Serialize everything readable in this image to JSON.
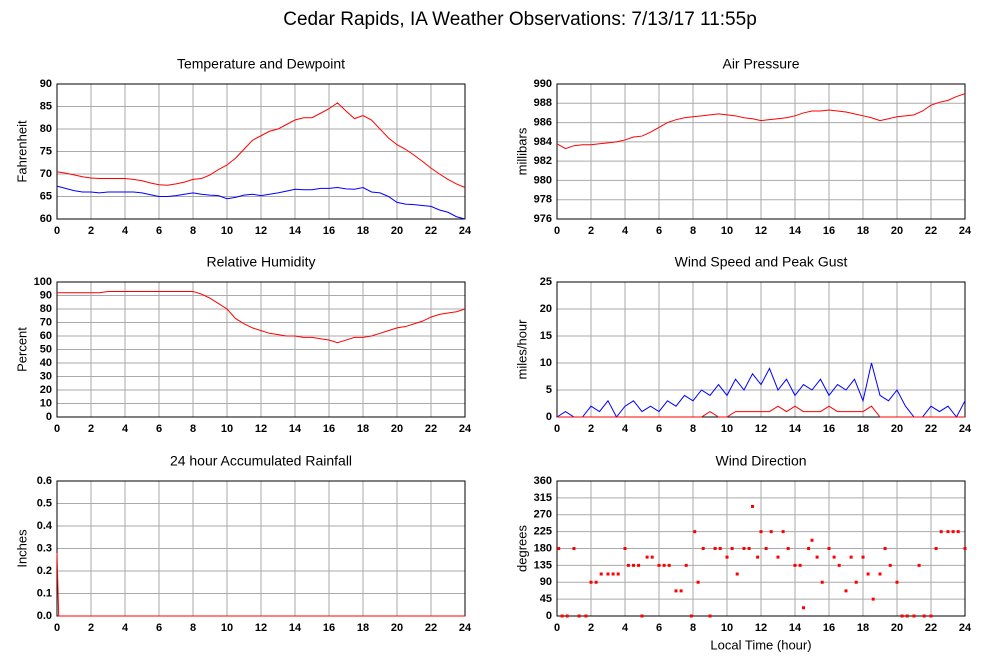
{
  "title": "Cedar Rapids, IA Weather Observations: 7/13/17 11:55p",
  "chart_data": [
    {
      "type": "line",
      "title": "Temperature and Dewpoint",
      "ylabel": "Fahrenheit",
      "x": [
        0,
        0.5,
        1,
        1.5,
        2,
        2.5,
        3,
        3.5,
        4,
        4.5,
        5,
        5.5,
        6,
        6.5,
        7,
        7.5,
        8,
        8.5,
        9,
        9.5,
        10,
        10.5,
        11,
        11.5,
        12,
        12.5,
        13,
        13.5,
        14,
        14.5,
        15,
        15.5,
        16,
        16.5,
        17,
        17.5,
        18,
        18.5,
        19,
        19.5,
        20,
        20.5,
        21,
        21.5,
        22,
        22.5,
        23,
        23.5,
        24
      ],
      "series": [
        {
          "color": "#ff0000",
          "values": [
            70.5,
            70.2,
            69.8,
            69.4,
            69.1,
            69,
            69,
            69,
            69,
            68.8,
            68.5,
            68,
            67.6,
            67.5,
            67.8,
            68.2,
            68.8,
            69,
            69.8,
            71,
            72,
            73.5,
            75.5,
            77.5,
            78.5,
            79.5,
            80,
            81,
            82,
            82.5,
            82.5,
            83.5,
            84.5,
            85.8,
            84,
            82.3,
            83,
            82,
            80,
            78,
            76.5,
            75.5,
            74.2,
            72.8,
            71.3,
            70,
            68.8,
            67.8,
            67
          ]
        },
        {
          "color": "#0000ff",
          "values": [
            67.3,
            66.8,
            66.3,
            66,
            66,
            65.8,
            66,
            66,
            66,
            66,
            65.8,
            65.4,
            65,
            65,
            65.2,
            65.5,
            65.8,
            65.5,
            65.3,
            65.2,
            64.5,
            64.8,
            65.3,
            65.5,
            65.2,
            65.5,
            65.8,
            66.2,
            66.6,
            66.5,
            66.5,
            66.8,
            66.8,
            67,
            66.7,
            66.6,
            67,
            66,
            65.8,
            65,
            63.7,
            63.3,
            63.2,
            63,
            62.8,
            62,
            61.5,
            60.5,
            60
          ]
        }
      ],
      "xlim": [
        0,
        24
      ],
      "xticks": [
        0,
        2,
        4,
        6,
        8,
        10,
        12,
        14,
        16,
        18,
        20,
        22,
        24
      ],
      "ylim": [
        60,
        90
      ],
      "yticks": [
        60,
        65,
        70,
        75,
        80,
        85,
        90
      ],
      "grid": true
    },
    {
      "type": "line",
      "title": "Air Pressure",
      "ylabel": "millibars",
      "x": [
        0,
        0.5,
        1,
        1.5,
        2,
        2.5,
        3,
        3.5,
        4,
        4.5,
        5,
        5.5,
        6,
        6.5,
        7,
        7.5,
        8,
        8.5,
        9,
        9.5,
        10,
        10.5,
        11,
        11.5,
        12,
        12.5,
        13,
        13.5,
        14,
        14.5,
        15,
        15.5,
        16,
        16.5,
        17,
        17.5,
        18,
        18.5,
        19,
        19.5,
        20,
        20.5,
        21,
        21.5,
        22,
        22.5,
        23,
        23.5,
        24
      ],
      "series": [
        {
          "color": "#ff0000",
          "values": [
            983.8,
            983.3,
            983.6,
            983.7,
            983.7,
            983.8,
            983.9,
            984,
            984.2,
            984.5,
            984.6,
            985,
            985.5,
            986,
            986.3,
            986.5,
            986.6,
            986.7,
            986.8,
            986.9,
            986.8,
            986.7,
            986.5,
            986.4,
            986.2,
            986.3,
            986.4,
            986.5,
            986.7,
            987,
            987.2,
            987.2,
            987.3,
            987.2,
            987.1,
            986.9,
            986.7,
            986.5,
            986.2,
            986.4,
            986.6,
            986.7,
            986.8,
            987.2,
            987.8,
            988.1,
            988.3,
            988.7,
            989
          ]
        }
      ],
      "xlim": [
        0,
        24
      ],
      "xticks": [
        0,
        2,
        4,
        6,
        8,
        10,
        12,
        14,
        16,
        18,
        20,
        22,
        24
      ],
      "ylim": [
        976,
        990
      ],
      "yticks": [
        976,
        978,
        980,
        982,
        984,
        986,
        988,
        990
      ],
      "grid": true
    },
    {
      "type": "line",
      "title": "Relative Humidity",
      "ylabel": "Percent",
      "x": [
        0,
        0.5,
        1,
        1.5,
        2,
        2.5,
        3,
        3.5,
        4,
        4.5,
        5,
        5.5,
        6,
        6.5,
        7,
        7.5,
        8,
        8.5,
        9,
        9.5,
        10,
        10.5,
        11,
        11.5,
        12,
        12.5,
        13,
        13.5,
        14,
        14.5,
        15,
        15.5,
        16,
        16.5,
        17,
        17.5,
        18,
        18.5,
        19,
        19.5,
        20,
        20.5,
        21,
        21.5,
        22,
        22.5,
        23,
        23.5,
        24
      ],
      "series": [
        {
          "color": "#ff0000",
          "values": [
            92,
            92,
            92,
            92,
            92,
            92,
            93,
            93,
            93,
            93,
            93,
            93,
            93,
            93,
            93,
            93,
            93,
            91,
            88,
            84,
            80,
            73,
            69,
            66,
            64,
            62,
            61,
            60,
            60,
            59,
            59,
            58,
            57,
            55,
            57,
            59,
            59,
            60,
            62,
            64,
            66,
            67,
            69,
            71,
            74,
            76,
            77,
            78,
            80
          ]
        }
      ],
      "xlim": [
        0,
        24
      ],
      "xticks": [
        0,
        2,
        4,
        6,
        8,
        10,
        12,
        14,
        16,
        18,
        20,
        22,
        24
      ],
      "ylim": [
        0,
        100
      ],
      "yticks": [
        0,
        10,
        20,
        30,
        40,
        50,
        60,
        70,
        80,
        90,
        100
      ],
      "grid": true
    },
    {
      "type": "line",
      "title": "Wind Speed and Peak Gust",
      "ylabel": "miles/hour",
      "x": [
        0,
        0.5,
        1,
        1.5,
        2,
        2.5,
        3,
        3.5,
        4,
        4.5,
        5,
        5.5,
        6,
        6.5,
        7,
        7.5,
        8,
        8.5,
        9,
        9.5,
        10,
        10.5,
        11,
        11.5,
        12,
        12.5,
        13,
        13.5,
        14,
        14.5,
        15,
        15.5,
        16,
        16.5,
        17,
        17.5,
        18,
        18.5,
        19,
        19.5,
        20,
        20.5,
        21,
        21.5,
        22,
        22.5,
        23,
        23.5,
        24
      ],
      "series": [
        {
          "color": "#0000ff",
          "values": [
            0,
            1,
            0,
            0,
            2,
            1,
            3,
            0,
            2,
            3,
            1,
            2,
            1,
            3,
            2,
            4,
            3,
            5,
            4,
            6,
            4,
            7,
            5,
            8,
            6,
            9,
            5,
            7,
            4,
            6,
            5,
            7,
            4,
            6,
            5,
            7,
            3,
            10,
            4,
            3,
            5,
            2,
            0,
            0,
            2,
            1,
            2,
            0,
            3
          ]
        },
        {
          "color": "#ff0000",
          "values": [
            0,
            0,
            0,
            0,
            0,
            0,
            0,
            0,
            0,
            0,
            0,
            0,
            0,
            0,
            0,
            0,
            0,
            0,
            1,
            0,
            0,
            1,
            1,
            1,
            1,
            1,
            2,
            1,
            2,
            1,
            1,
            1,
            2,
            1,
            1,
            1,
            1,
            2,
            0,
            0,
            0,
            0,
            0,
            0,
            0,
            0,
            0,
            0,
            0
          ]
        }
      ],
      "xlim": [
        0,
        24
      ],
      "xticks": [
        0,
        2,
        4,
        6,
        8,
        10,
        12,
        14,
        16,
        18,
        20,
        22,
        24
      ],
      "ylim": [
        0,
        25
      ],
      "yticks": [
        0,
        5,
        10,
        15,
        20,
        25
      ],
      "grid": true
    },
    {
      "type": "line",
      "title": "24 hour Accumulated Rainfall",
      "ylabel": "Inches",
      "x": [
        0,
        0.1,
        24
      ],
      "series": [
        {
          "color": "#ff0000",
          "values": [
            0.28,
            0,
            0
          ]
        }
      ],
      "xlim": [
        0,
        24
      ],
      "xticks": [
        0,
        2,
        4,
        6,
        8,
        10,
        12,
        14,
        16,
        18,
        20,
        22,
        24
      ],
      "ylim": [
        0,
        0.6
      ],
      "yticks": [
        {
          "value": 0,
          "label": "0.0"
        },
        0.1,
        0.2,
        0.3,
        0.4,
        0.5,
        0.6
      ],
      "grid": true
    },
    {
      "type": "scatter",
      "title": "Wind Direction",
      "ylabel": "degrees",
      "xlabel": "Local Time (hour)",
      "color": "#ff0000",
      "x": [
        0.1,
        0.3,
        0.6,
        1,
        1.3,
        1.7,
        2,
        2.3,
        2.6,
        3,
        3.3,
        3.6,
        4,
        4.2,
        4.5,
        4.8,
        5,
        5.3,
        5.6,
        6,
        6.3,
        6.6,
        7,
        7.3,
        7.6,
        7.9,
        8.1,
        8.3,
        8.6,
        9,
        9.3,
        9.6,
        10,
        10.3,
        10.6,
        11,
        11.3,
        11.5,
        11.8,
        12,
        12.3,
        12.6,
        13,
        13.3,
        13.6,
        14,
        14.3,
        14.5,
        14.8,
        15,
        15.3,
        15.6,
        16,
        16.3,
        16.6,
        17,
        17.3,
        17.6,
        18,
        18.3,
        18.6,
        19,
        19.3,
        19.6,
        20,
        20.3,
        20.6,
        21,
        21.3,
        21.6,
        22,
        22.3,
        22.6,
        23,
        23.3,
        23.6,
        24
      ],
      "values": [
        180,
        0,
        0,
        180,
        0,
        0,
        90,
        90,
        112,
        112,
        112,
        112,
        180,
        135,
        135,
        135,
        0,
        157,
        157,
        135,
        135,
        135,
        67,
        67,
        135,
        0,
        225,
        90,
        180,
        0,
        180,
        180,
        157,
        180,
        112,
        180,
        180,
        292,
        157,
        225,
        180,
        225,
        157,
        225,
        180,
        135,
        135,
        22,
        180,
        202,
        157,
        90,
        180,
        157,
        135,
        67,
        157,
        90,
        157,
        112,
        45,
        112,
        180,
        135,
        90,
        0,
        0,
        0,
        135,
        0,
        0,
        180,
        225,
        225,
        225,
        225,
        180
      ],
      "xlim": [
        0,
        24
      ],
      "xticks": [
        0,
        2,
        4,
        6,
        8,
        10,
        12,
        14,
        16,
        18,
        20,
        22,
        24
      ],
      "ylim": [
        0,
        360
      ],
      "yticks": [
        0,
        45,
        90,
        135,
        180,
        225,
        270,
        315,
        360
      ],
      "grid": true
    }
  ]
}
